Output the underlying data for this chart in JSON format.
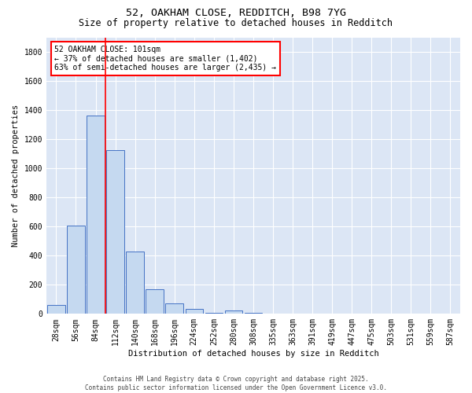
{
  "title1": "52, OAKHAM CLOSE, REDDITCH, B98 7YG",
  "title2": "Size of property relative to detached houses in Redditch",
  "xlabel": "Distribution of detached houses by size in Redditch",
  "ylabel": "Number of detached properties",
  "bar_labels": [
    "28sqm",
    "56sqm",
    "84sqm",
    "112sqm",
    "140sqm",
    "168sqm",
    "196sqm",
    "224sqm",
    "252sqm",
    "280sqm",
    "308sqm",
    "335sqm",
    "363sqm",
    "391sqm",
    "419sqm",
    "447sqm",
    "475sqm",
    "503sqm",
    "531sqm",
    "559sqm",
    "587sqm"
  ],
  "bar_values": [
    60,
    605,
    1365,
    1125,
    430,
    170,
    70,
    35,
    5,
    25,
    5,
    0,
    0,
    0,
    0,
    0,
    0,
    0,
    0,
    0,
    0
  ],
  "bar_color": "#c5d9f0",
  "bar_edge_color": "#4472c4",
  "vline_color": "red",
  "vline_position": 2.5,
  "annotation_text": "52 OAKHAM CLOSE: 101sqm\n← 37% of detached houses are smaller (1,402)\n63% of semi-detached houses are larger (2,435) →",
  "annotation_box_color": "white",
  "annotation_box_edge": "red",
  "ylim": [
    0,
    1900
  ],
  "yticks": [
    0,
    200,
    400,
    600,
    800,
    1000,
    1200,
    1400,
    1600,
    1800
  ],
  "background_color": "#dce6f5",
  "grid_color": "white",
  "footer": "Contains HM Land Registry data © Crown copyright and database right 2025.\nContains public sector information licensed under the Open Government Licence v3.0.",
  "title1_fontsize": 9.5,
  "title2_fontsize": 8.5,
  "xlabel_fontsize": 7.5,
  "ylabel_fontsize": 7.5,
  "tick_fontsize": 7,
  "annot_fontsize": 7,
  "footer_fontsize": 5.5
}
